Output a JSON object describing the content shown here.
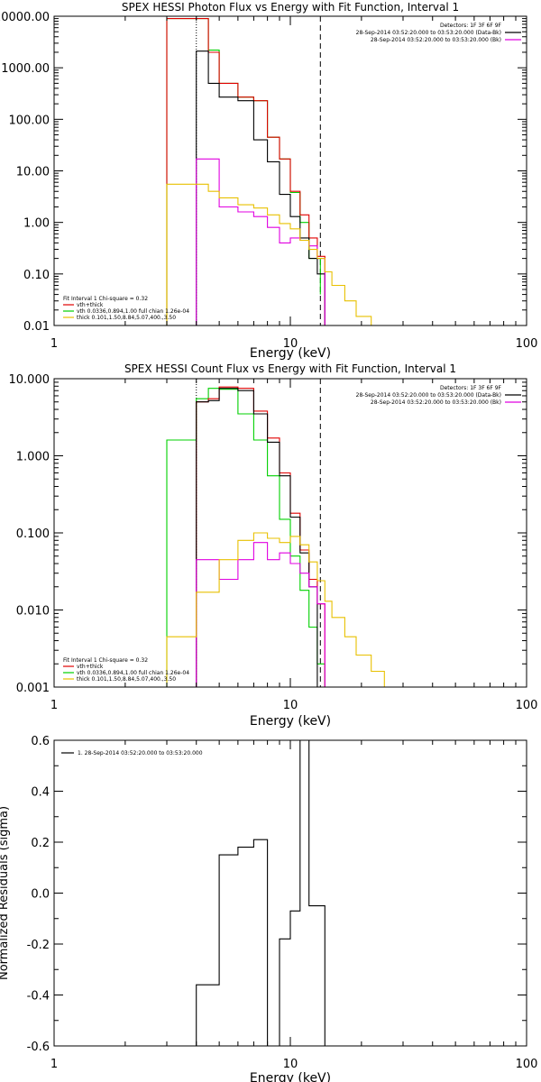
{
  "colors": {
    "background": "#ffffff",
    "axes": "#000000",
    "data_minus_bk": "#000000",
    "bk": "#e000e0",
    "vth": "#00d000",
    "thick": "#e8c000",
    "total": "#e00000"
  },
  "chart_data": [
    {
      "type": "line",
      "title": "SPEX HESSI Photon Flux vs Energy with Fit Function, Interval 1",
      "xlabel": "Energy (keV)",
      "ylabel": "",
      "x_scale": "log",
      "y_scale": "log",
      "xlim": [
        1,
        100
      ],
      "ylim": [
        0.01,
        10000
      ],
      "x_tick_labels": [
        "1",
        "10",
        "100"
      ],
      "y_tick_labels": [
        "0.01",
        "0.10",
        "1.00",
        "10.00",
        "100.00",
        "1000.00",
        "10000.00"
      ],
      "y_tick_values": [
        0.01,
        0.1,
        1,
        10,
        100,
        1000,
        10000
      ],
      "vlines": [
        {
          "x": 4.0,
          "style": "dotted"
        },
        {
          "x": 13.4,
          "style": "dashed"
        }
      ],
      "legend_top": {
        "header": "Detectors: 1F 3F 6F 9F",
        "entries": [
          {
            "label": "28-Sep-2014 03:52:20.000 to 03:53:20.000 (Data-Bk)",
            "color": "#000000"
          },
          {
            "label": "28-Sep-2014 03:52:20.000 to 03:53:20.000 (Bk)",
            "color": "#e000e0"
          }
        ]
      },
      "legend_bottom": {
        "header": "Fit Interval 1   Chi-square = 0.32",
        "entries": [
          {
            "label": "vth+thick",
            "color": "#e00000"
          },
          {
            "label": "vth 0.0336,0.894,1.00   full chian 1.26e-04",
            "color": "#00d000"
          },
          {
            "label": "thick 0.101,1.50,8.84,5.07,400.,3.50",
            "color": "#e8c000"
          }
        ]
      },
      "series": [
        {
          "key": "vth",
          "color": "#00d000",
          "edges": [
            3,
            4,
            4.5,
            5,
            6,
            7,
            8,
            9,
            10,
            11,
            12,
            13.4
          ],
          "values": [
            9000,
            9000,
            2200,
            500,
            270,
            230,
            45,
            17,
            3.8,
            1.0,
            0.2,
            0.04
          ]
        },
        {
          "key": "total",
          "color": "#e00000",
          "edges": [
            3,
            4,
            4.5,
            5,
            6,
            7,
            8,
            9,
            10,
            11,
            12,
            13,
            14
          ],
          "values": [
            9000,
            9000,
            2000,
            500,
            270,
            230,
            45,
            17,
            4,
            1.4,
            0.5,
            0.22
          ]
        },
        {
          "key": "data_minus_bk",
          "color": "#000000",
          "edges": [
            4,
            4.5,
            5,
            6,
            7,
            8,
            9,
            10,
            11,
            12,
            13,
            14
          ],
          "values": [
            2100,
            500,
            270,
            230,
            40,
            15,
            3.5,
            1.3,
            0.5,
            0.2,
            0.1
          ]
        },
        {
          "key": "bk",
          "color": "#e000e0",
          "edges": [
            4,
            4.5,
            5,
            6,
            7,
            8,
            9,
            10,
            11,
            12,
            13,
            14
          ],
          "values": [
            17,
            17,
            2,
            1.6,
            1.3,
            0.8,
            0.4,
            0.5,
            0.45,
            0.35,
            0.2
          ]
        },
        {
          "key": "thick",
          "color": "#e8c000",
          "edges": [
            3,
            4,
            4.5,
            5,
            6,
            7,
            8,
            9,
            10,
            11,
            12,
            13,
            14,
            15,
            17,
            19,
            22
          ],
          "values": [
            5.5,
            5.5,
            4,
            3,
            2.2,
            1.9,
            1.4,
            0.95,
            0.75,
            0.45,
            0.3,
            0.2,
            0.11,
            0.06,
            0.03,
            0.015
          ]
        }
      ]
    },
    {
      "type": "line",
      "title": "SPEX HESSI Count Flux vs Energy with Fit Function, Interval 1",
      "xlabel": "Energy (keV)",
      "ylabel": "",
      "x_scale": "log",
      "y_scale": "log",
      "xlim": [
        1,
        100
      ],
      "ylim": [
        0.001,
        10
      ],
      "x_tick_labels": [
        "1",
        "10",
        "100"
      ],
      "y_tick_labels": [
        "0.001",
        "0.010",
        "0.100",
        "1.000",
        "10.000"
      ],
      "y_tick_values": [
        0.001,
        0.01,
        0.1,
        1,
        10
      ],
      "vlines": [
        {
          "x": 4.0,
          "style": "dotted"
        },
        {
          "x": 13.4,
          "style": "dashed"
        }
      ],
      "legend_top": {
        "header": "Detectors: 1F 3F 6F 9F",
        "entries": [
          {
            "label": "28-Sep-2014 03:52:20.000 to 03:53:20.000 (Data-Bk)",
            "color": "#000000"
          },
          {
            "label": "28-Sep-2014 03:52:20.000 to 03:53:20.000 (Bk)",
            "color": "#e000e0"
          }
        ]
      },
      "legend_bottom": {
        "header": "Fit Interval 1   Chi-square = 0.32",
        "entries": [
          {
            "label": "vth+thick",
            "color": "#e00000"
          },
          {
            "label": "vth 0.0336,0.894,1.00   full chian 1.26e-04",
            "color": "#00d000"
          },
          {
            "label": "thick 0.101,1.50,8.84,5.07,400.,3.50",
            "color": "#e8c000"
          }
        ]
      },
      "series": [
        {
          "key": "vth",
          "color": "#00d000",
          "edges": [
            3,
            4,
            4.5,
            5,
            6,
            7,
            8,
            9,
            10,
            11,
            12,
            13,
            14,
            15
          ],
          "values": [
            1.6,
            5.5,
            7.5,
            7.3,
            3.5,
            1.6,
            0.55,
            0.15,
            0.05,
            0.018,
            0.006,
            0.002,
            0.001
          ]
        },
        {
          "key": "total",
          "color": "#e00000",
          "edges": [
            4,
            4.5,
            5,
            6,
            7,
            8,
            9,
            10,
            11,
            12,
            13,
            14
          ],
          "values": [
            5.0,
            5.5,
            7.8,
            7.5,
            3.8,
            1.7,
            0.6,
            0.18,
            0.06,
            0.025,
            0.012
          ]
        },
        {
          "key": "data_minus_bk",
          "color": "#000000",
          "edges": [
            4,
            4.5,
            5,
            6,
            7,
            8,
            9,
            10,
            11,
            12,
            13
          ],
          "values": [
            5.0,
            5.2,
            7.5,
            7.0,
            3.5,
            1.5,
            0.55,
            0.16,
            0.055,
            0.02
          ]
        },
        {
          "key": "bk",
          "color": "#e000e0",
          "edges": [
            4,
            4.5,
            5,
            6,
            7,
            8,
            9,
            10,
            11,
            12,
            13,
            14
          ],
          "values": [
            0.045,
            0.045,
            0.025,
            0.045,
            0.075,
            0.045,
            0.055,
            0.04,
            0.03,
            0.02,
            0.012
          ]
        },
        {
          "key": "thick",
          "color": "#e8c000",
          "edges": [
            3,
            4,
            4.5,
            5,
            6,
            7,
            8,
            9,
            10,
            11,
            12,
            13,
            14,
            15,
            17,
            19,
            22,
            25
          ],
          "values": [
            0.0045,
            0.017,
            0.017,
            0.045,
            0.08,
            0.1,
            0.085,
            0.075,
            0.09,
            0.07,
            0.042,
            0.024,
            0.013,
            0.008,
            0.0045,
            0.0026,
            0.0016
          ]
        }
      ]
    },
    {
      "type": "line",
      "title": "",
      "xlabel": "Energy (keV)",
      "ylabel": "Normalized Residuals (sigma)",
      "x_scale": "log",
      "y_scale": "linear",
      "xlim": [
        1,
        100
      ],
      "ylim": [
        -0.6,
        0.6
      ],
      "x_tick_labels": [
        "1",
        "10",
        "100"
      ],
      "y_tick_labels": [
        "-0.6",
        "-0.4",
        "-0.2",
        "0.0",
        "0.2",
        "0.4",
        "0.6"
      ],
      "y_tick_values": [
        -0.6,
        -0.4,
        -0.2,
        0.0,
        0.2,
        0.4,
        0.6
      ],
      "legend_top": {
        "header": "",
        "entries": [
          {
            "label": "1. 28-Sep-2014 03:52:20.000 to 03:53:20.000",
            "color": "#000000"
          }
        ]
      },
      "series": [
        {
          "key": "residuals",
          "color": "#000000",
          "edges": [
            4,
            4.5,
            5,
            6,
            7,
            8,
            9,
            10,
            11,
            12,
            13,
            14
          ],
          "values": [
            -0.36,
            -0.36,
            0.15,
            0.18,
            0.21,
            -0.63,
            -0.18,
            -0.07,
            0.6,
            -0.05,
            -0.05
          ]
        }
      ]
    }
  ]
}
